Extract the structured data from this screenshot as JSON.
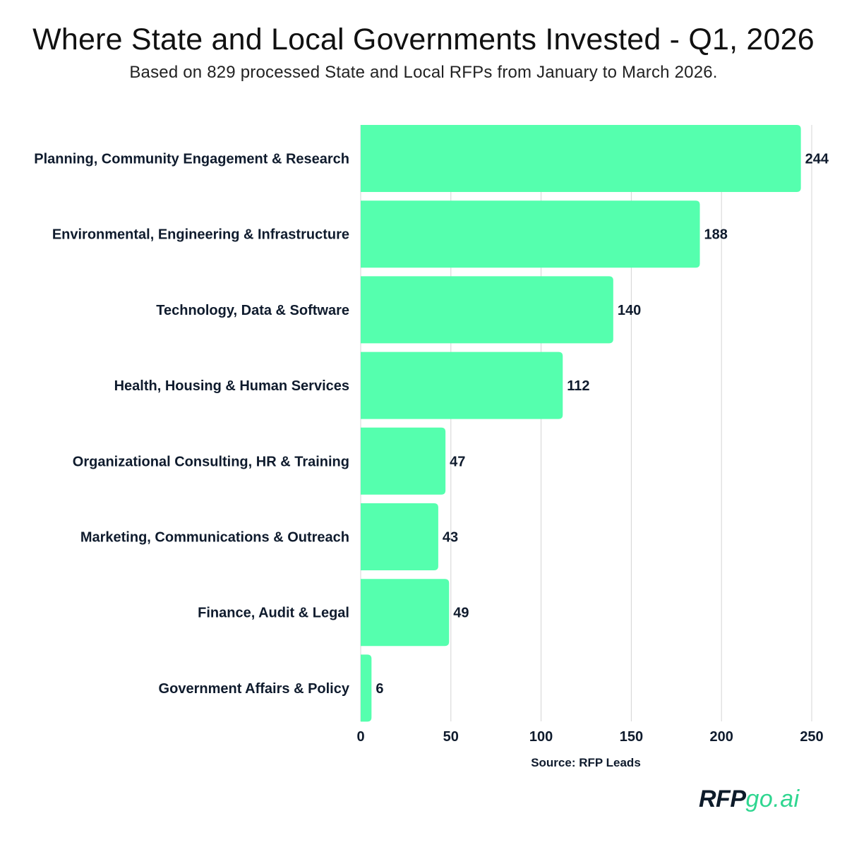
{
  "chart_data": {
    "type": "bar",
    "orientation": "horizontal",
    "title": "Where State and Local Governments Invested - Q1, 2026",
    "subtitle": "Based on 829 processed State and Local RFPs from January to March 2026.",
    "categories": [
      "Planning, Community Engagement & Research",
      "Environmental, Engineering & Infrastructure",
      "Technology, Data & Software",
      "Health, Housing & Human Services",
      "Organizational Consulting, HR & Training",
      "Marketing, Communications & Outreach",
      "Finance, Audit & Legal",
      "Government Affairs & Policy"
    ],
    "values": [
      244,
      188,
      140,
      112,
      47,
      43,
      49,
      6
    ],
    "xlim": [
      0,
      250
    ],
    "xticks": [
      0,
      50,
      100,
      150,
      200,
      250
    ],
    "grid": true,
    "bar_color": "#55ffae",
    "xlabel": "Source: RFP Leads",
    "ylabel": ""
  },
  "branding": {
    "logo_part1": "RFP",
    "logo_part2": "go.ai",
    "logo_dark_color": "#0d1b2a",
    "logo_accent_color": "#2fd690"
  }
}
